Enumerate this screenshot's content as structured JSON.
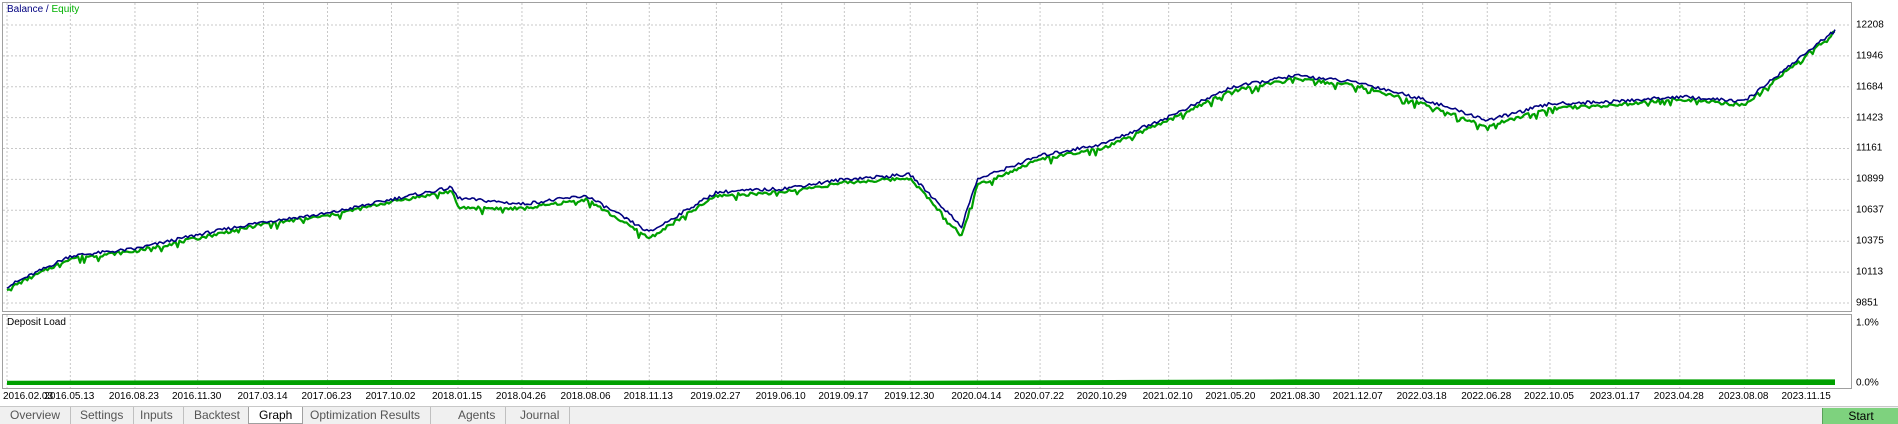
{
  "main_chart": {
    "legend": {
      "balance": "Balance",
      "separator": " / ",
      "equity": "Equity"
    },
    "y_ticks": [
      "12208",
      "11946",
      "11684",
      "11423",
      "11161",
      "10899",
      "10637",
      "10375",
      "10113",
      "9851"
    ]
  },
  "load_chart": {
    "title": "Deposit Load",
    "y_ticks": [
      "1.0%",
      "0.0%"
    ]
  },
  "x_ticks": [
    "2016.02.03",
    "2016.05.13",
    "2016.08.23",
    "2016.11.30",
    "2017.03.14",
    "2017.06.23",
    "2017.10.02",
    "2018.01.15",
    "2018.04.26",
    "2018.08.06",
    "2018.11.13",
    "2019.02.27",
    "2019.06.10",
    "2019.09.17",
    "2019.12.30",
    "2020.04.14",
    "2020.07.22",
    "2020.10.29",
    "2021.02.10",
    "2021.05.20",
    "2021.08.30",
    "2021.12.07",
    "2022.03.18",
    "2022.06.28",
    "2022.10.05",
    "2023.01.17",
    "2023.04.28",
    "2023.08.08",
    "2023.11.15"
  ],
  "tabs": [
    {
      "label": "Overview",
      "active": false
    },
    {
      "label": "Settings",
      "active": false
    },
    {
      "label": "Inputs",
      "active": false
    },
    {
      "label": "Backtest",
      "active": false
    },
    {
      "label": "Graph",
      "active": true
    },
    {
      "label": "Optimization Results",
      "active": false
    },
    {
      "label": "Agents",
      "active": false
    },
    {
      "label": "Journal",
      "active": false
    }
  ],
  "start_button": {
    "label": "Start"
  },
  "colors": {
    "balance": "#000080",
    "equity": "#00a000",
    "deposit_load": "#00a000",
    "grid": "#c8c8c8"
  },
  "chart_data": [
    {
      "type": "line",
      "ylim": [
        9851,
        12208
      ],
      "grid": true,
      "legend_placement": "top-left",
      "series": [
        {
          "name": "Balance",
          "x": [
            "2016.02.03",
            "2016.05.13",
            "2016.08.23",
            "2016.11.30",
            "2017.03.14",
            "2017.06.23",
            "2017.10.02",
            "2018.01.05",
            "2018.01.15",
            "2018.04.26",
            "2018.08.06",
            "2018.11.13",
            "2019.02.27",
            "2019.06.10",
            "2019.09.17",
            "2019.12.30",
            "2020.03.20",
            "2020.04.14",
            "2020.07.22",
            "2020.10.29",
            "2021.02.10",
            "2021.05.20",
            "2021.08.30",
            "2021.12.07",
            "2022.03.18",
            "2022.06.28",
            "2022.10.05",
            "2023.01.17",
            "2023.04.28",
            "2023.08.08",
            "2023.11.15",
            "2023.12.29"
          ],
          "values": [
            9990,
            10250,
            10310,
            10430,
            10540,
            10610,
            10730,
            10830,
            10740,
            10690,
            10760,
            10450,
            10790,
            10820,
            10900,
            10940,
            10500,
            10900,
            11100,
            11200,
            11430,
            11680,
            11780,
            11720,
            11580,
            11400,
            11540,
            11560,
            11600,
            11560,
            11980,
            12160
          ]
        },
        {
          "name": "Equity",
          "x": [
            "2016.02.03",
            "2016.05.13",
            "2016.08.23",
            "2016.11.30",
            "2017.03.14",
            "2017.06.23",
            "2017.10.02",
            "2018.01.05",
            "2018.01.15",
            "2018.04.26",
            "2018.08.06",
            "2018.11.13",
            "2019.02.27",
            "2019.06.10",
            "2019.09.17",
            "2019.12.30",
            "2020.03.20",
            "2020.04.14",
            "2020.07.22",
            "2020.10.29",
            "2021.02.10",
            "2021.05.20",
            "2021.08.30",
            "2021.12.07",
            "2022.03.18",
            "2022.06.28",
            "2022.10.05",
            "2023.01.17",
            "2023.04.28",
            "2023.08.08",
            "2023.11.15",
            "2023.12.29"
          ],
          "values": [
            9970,
            10230,
            10290,
            10400,
            10520,
            10590,
            10710,
            10800,
            10660,
            10650,
            10730,
            10400,
            10760,
            10790,
            10870,
            10910,
            10420,
            10850,
            11070,
            11160,
            11400,
            11650,
            11750,
            11690,
            11540,
            11350,
            11500,
            11530,
            11580,
            11530,
            11960,
            12150
          ]
        }
      ]
    },
    {
      "type": "area",
      "ylim": [
        0,
        1.0
      ],
      "series": [
        {
          "name": "Deposit Load",
          "x": [
            "2016.02.03",
            "2017.10.02",
            "2019.12.30",
            "2021.08.30",
            "2023.12.29"
          ],
          "values": [
            0.07,
            0.08,
            0.07,
            0.09,
            0.09
          ]
        }
      ]
    }
  ]
}
